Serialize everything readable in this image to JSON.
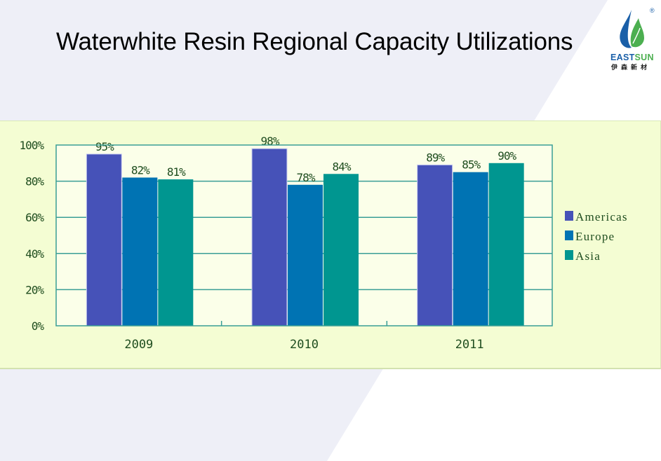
{
  "slide": {
    "title": "Waterwhite Resin Regional Capacity Utilizations"
  },
  "logo": {
    "brand_text": "EASTSUN",
    "chinese_text": "伊森新材",
    "registered_mark": "®",
    "colors": {
      "blue": "#1a5fa8",
      "green": "#4caf50"
    }
  },
  "chart_data": {
    "type": "bar",
    "title": "",
    "xlabel": "",
    "ylabel": "",
    "categories": [
      "2009",
      "2010",
      "2011"
    ],
    "series": [
      {
        "name": "Americas",
        "values": [
          95,
          98,
          89
        ],
        "labels": [
          "95%",
          "98%",
          "89%"
        ],
        "color": "#4652b8"
      },
      {
        "name": "Europe",
        "values": [
          82,
          78,
          85
        ],
        "labels": [
          "82%",
          "78%",
          "85%"
        ],
        "color": "#0073b3"
      },
      {
        "name": "Asia",
        "values": [
          81,
          84,
          90
        ],
        "labels": [
          "81%",
          "84%",
          "90%"
        ],
        "color": "#009690"
      }
    ],
    "ylim": [
      0,
      100
    ],
    "yticks": [
      0,
      20,
      40,
      60,
      80,
      100
    ],
    "ytick_labels": [
      "0%",
      "20%",
      "40%",
      "60%",
      "80%",
      "100%"
    ],
    "grid": true,
    "legend_position": "right",
    "colors": {
      "panel_bg": "#f4fdd3",
      "plot_bg": "#fbffe9",
      "axis": "#3a9e96",
      "text": "#1f4d1f"
    }
  }
}
